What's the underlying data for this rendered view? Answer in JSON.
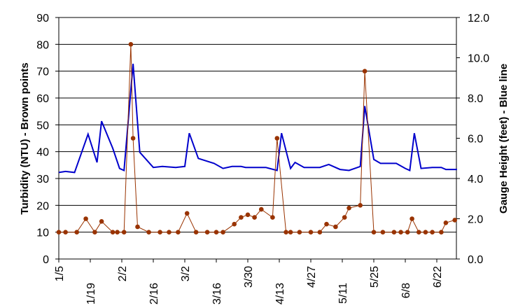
{
  "chart_data": {
    "type": "line",
    "title": "",
    "xlabel": "",
    "ylabel": "Turbidity (NTU) - Brown points",
    "y2label": "Gauge Height (feet) - Blue line",
    "ylim": [
      0,
      90
    ],
    "y2lim": [
      0.0,
      12.0
    ],
    "yticks": [
      "0",
      "10",
      "20",
      "30",
      "40",
      "50",
      "60",
      "70",
      "80",
      "90"
    ],
    "y2ticks": [
      "0.0",
      "2.0",
      "4.0",
      "6.0",
      "8.0",
      "10.0",
      "12.0"
    ],
    "xticks": [
      "1/5",
      "1/19",
      "2/2",
      "2/16",
      "3/2",
      "3/16",
      "3/30",
      "4/13",
      "4/27",
      "5/11",
      "5/25",
      "6/8",
      "6/22"
    ],
    "grid": "horizontal",
    "legend": "none",
    "colors": {
      "turbidity": "#993300",
      "gauge": "#0000cc",
      "grid": "#000000"
    },
    "series": [
      {
        "name": "Turbidity (NTU)",
        "axis": "left",
        "style": "line+markers",
        "points": [
          [
            "1/5",
            10
          ],
          [
            "1/8",
            10
          ],
          [
            "1/13",
            10
          ],
          [
            "1/17",
            15
          ],
          [
            "1/21",
            10
          ],
          [
            "1/24",
            14
          ],
          [
            "1/29",
            10
          ],
          [
            "1/31",
            10
          ],
          [
            "2/3",
            10
          ],
          [
            "2/6",
            80
          ],
          [
            "2/7",
            45
          ],
          [
            "2/9",
            12
          ],
          [
            "2/14",
            10
          ],
          [
            "2/19",
            10
          ],
          [
            "2/23",
            10
          ],
          [
            "2/27",
            10
          ],
          [
            "3/2",
            17
          ],
          [
            "3/6",
            10
          ],
          [
            "3/11",
            10
          ],
          [
            "3/15",
            10
          ],
          [
            "3/18",
            10
          ],
          [
            "3/23",
            13
          ],
          [
            "3/26",
            15.5
          ],
          [
            "3/29",
            16.5
          ],
          [
            "4/1",
            15.5
          ],
          [
            "4/4",
            18.5
          ],
          [
            "4/9",
            15.5
          ],
          [
            "4/11",
            45
          ],
          [
            "4/15",
            10
          ],
          [
            "4/17",
            10
          ],
          [
            "4/21",
            10
          ],
          [
            "4/26",
            10
          ],
          [
            "4/30",
            10
          ],
          [
            "5/3",
            13
          ],
          [
            "5/7",
            12
          ],
          [
            "5/11",
            15.5
          ],
          [
            "5/13",
            19
          ],
          [
            "5/18",
            20
          ],
          [
            "5/20",
            70
          ],
          [
            "5/24",
            10
          ],
          [
            "5/28",
            10
          ],
          [
            "6/2",
            10
          ],
          [
            "6/5",
            10
          ],
          [
            "6/8",
            10
          ],
          [
            "6/10",
            15
          ],
          [
            "6/13",
            10
          ],
          [
            "6/16",
            10
          ],
          [
            "6/19",
            10
          ],
          [
            "6/23",
            10
          ],
          [
            "6/25",
            13.5
          ],
          [
            "6/29",
            14.5
          ]
        ]
      },
      {
        "name": "Gauge Height (feet)",
        "axis": "right",
        "style": "line",
        "points": [
          [
            "1/5",
            4.3
          ],
          [
            "1/8",
            4.35
          ],
          [
            "1/12",
            4.3
          ],
          [
            "1/18",
            6.2
          ],
          [
            "1/22",
            4.8
          ],
          [
            "1/24",
            6.85
          ],
          [
            "1/29",
            5.5
          ],
          [
            "2/1",
            4.5
          ],
          [
            "2/3",
            4.4
          ],
          [
            "2/7",
            9.7
          ],
          [
            "2/10",
            5.3
          ],
          [
            "2/16",
            4.55
          ],
          [
            "2/20",
            4.6
          ],
          [
            "2/26",
            4.55
          ],
          [
            "3/1",
            4.6
          ],
          [
            "3/3",
            6.25
          ],
          [
            "3/7",
            5.0
          ],
          [
            "3/14",
            4.75
          ],
          [
            "3/18",
            4.5
          ],
          [
            "3/22",
            4.6
          ],
          [
            "3/26",
            4.6
          ],
          [
            "3/28",
            4.55
          ],
          [
            "4/2",
            4.55
          ],
          [
            "4/6",
            4.55
          ],
          [
            "4/11",
            4.4
          ],
          [
            "4/13",
            6.25
          ],
          [
            "4/17",
            4.5
          ],
          [
            "4/19",
            4.8
          ],
          [
            "4/23",
            4.55
          ],
          [
            "4/30",
            4.55
          ],
          [
            "5/4",
            4.7
          ],
          [
            "5/9",
            4.45
          ],
          [
            "5/13",
            4.4
          ],
          [
            "5/18",
            4.6
          ],
          [
            "5/20",
            7.6
          ],
          [
            "5/24",
            4.95
          ],
          [
            "5/27",
            4.75
          ],
          [
            "6/3",
            4.75
          ],
          [
            "6/7",
            4.5
          ],
          [
            "6/9",
            4.4
          ],
          [
            "6/11",
            6.25
          ],
          [
            "6/14",
            4.5
          ],
          [
            "6/19",
            4.55
          ],
          [
            "6/23",
            4.55
          ],
          [
            "6/25",
            4.45
          ],
          [
            "6/30",
            4.45
          ]
        ]
      }
    ]
  }
}
